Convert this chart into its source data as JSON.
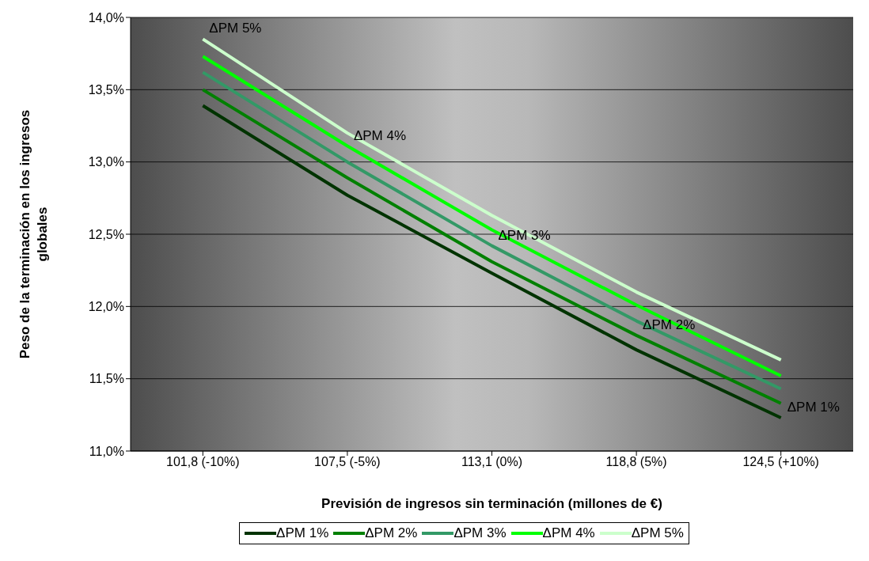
{
  "chart_data": {
    "type": "line",
    "xlabel": "Previsión de ingresos sin terminación (millones de €)",
    "ylabel": "Peso de la terminación en los ingresos globales",
    "categories": [
      "101,8 (-10%)",
      "107,5 (-5%)",
      "113,1 (0%)",
      "118,8 (5%)",
      "124,5 (+10%)"
    ],
    "series": [
      {
        "name": "ΔPM 1%",
        "color": "#003300",
        "values": [
          13.39,
          12.77,
          12.23,
          11.7,
          11.23
        ]
      },
      {
        "name": "ΔPM 2%",
        "color": "#008000",
        "values": [
          13.5,
          12.89,
          12.31,
          11.8,
          11.33
        ]
      },
      {
        "name": "ΔPM 3%",
        "color": "#339966",
        "values": [
          13.62,
          13.0,
          12.42,
          11.9,
          11.43
        ]
      },
      {
        "name": "ΔPM 4%",
        "color": "#00ff00",
        "values": [
          13.73,
          13.11,
          12.53,
          12.01,
          11.52
        ]
      },
      {
        "name": "ΔPM 5%",
        "color": "#ccffcc",
        "values": [
          13.85,
          13.2,
          12.63,
          12.1,
          11.63
        ]
      }
    ],
    "ylim": [
      11,
      14
    ],
    "yticks": [
      {
        "value": 11,
        "label": "11,0%"
      },
      {
        "value": 11.5,
        "label": "11,5%"
      },
      {
        "value": 12,
        "label": "12,0%"
      },
      {
        "value": 12.5,
        "label": "12,5%"
      },
      {
        "value": 13,
        "label": "13,0%"
      },
      {
        "value": 13.5,
        "label": "13,5%"
      },
      {
        "value": 14,
        "label": "14,0%"
      }
    ],
    "grid": "y",
    "legend": "bottom",
    "marker": "none",
    "line_style": "solid",
    "annotations": [
      {
        "text": "ΔPM 5%",
        "x": "101,8 (-10%)",
        "y": 13.85
      },
      {
        "text": "ΔPM 4%",
        "x": "107,5 (-5%)",
        "y": 13.11
      },
      {
        "text": "ΔPM 3%",
        "x": "113,1 (0%)",
        "y": 12.42
      },
      {
        "text": "ΔPM 2%",
        "x": "118,8 (5%)",
        "y": 11.8
      },
      {
        "text": "ΔPM 1%",
        "x": "124,5 (+10%)",
        "y": 11.23
      }
    ]
  }
}
